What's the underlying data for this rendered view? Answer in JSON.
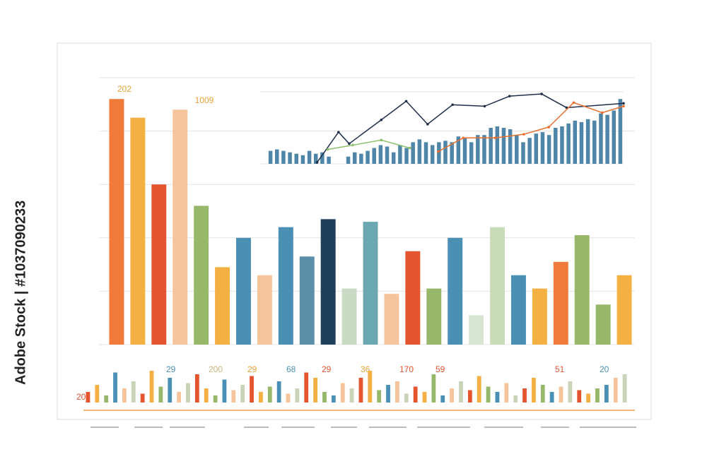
{
  "watermark": "Adobe Stock | #1037090233",
  "chart_data": [
    {
      "type": "bar",
      "annotations": [
        "202",
        "1009"
      ],
      "categories": [
        null,
        null,
        null,
        null,
        null,
        null,
        null,
        null,
        null,
        null,
        null,
        null,
        null,
        null,
        null,
        null,
        null,
        null,
        null,
        null,
        null,
        null,
        null,
        null,
        null
      ],
      "values": [
        92,
        85,
        60,
        88,
        52,
        29,
        40,
        26,
        44,
        33,
        47,
        21,
        46,
        19,
        35,
        21,
        40,
        11,
        44,
        26,
        21,
        31,
        41,
        15,
        26
      ],
      "colors": [
        "#f07a3a",
        "#f5b043",
        "#e4552f",
        "#f6c49b",
        "#97b86a",
        "#f5b043",
        "#4a90b5",
        "#f6c49b",
        "#4a90b5",
        "#5b8fa8",
        "#1f3f5a",
        "#c9dcc3",
        "#6aa7b0",
        "#f6c49b",
        "#e4552f",
        "#97b86a",
        "#4a90b5",
        "#d9e5d3",
        "#c9dcb8",
        "#4a90b5",
        "#f5b043",
        "#f07a3a",
        "#97b86a",
        "#97b86a",
        "#f5b043"
      ],
      "ylim": [
        0,
        100
      ],
      "yticks": [
        0,
        20,
        40,
        60,
        80,
        100
      ],
      "grid": true
    },
    {
      "type": "combo",
      "categories": [
        null,
        null,
        null,
        null,
        null,
        null,
        null,
        null,
        null,
        null,
        null,
        null,
        null,
        null,
        null,
        null,
        null,
        null,
        null,
        null,
        null,
        null,
        null,
        null,
        null,
        null,
        null,
        null,
        null,
        null,
        null,
        null,
        null,
        null,
        null,
        null,
        null,
        null,
        null,
        null,
        null,
        null,
        null,
        null,
        null,
        null,
        null,
        null,
        null,
        null,
        null,
        null,
        null,
        null,
        null
      ],
      "values": [
        18,
        20,
        18,
        16,
        14,
        12,
        18,
        14,
        16,
        10,
        0,
        0,
        10,
        16,
        14,
        18,
        22,
        26,
        24,
        16,
        26,
        22,
        30,
        34,
        30,
        26,
        30,
        32,
        30,
        38,
        36,
        30,
        40,
        40,
        50,
        52,
        50,
        48,
        40,
        30,
        36,
        42,
        44,
        40,
        50,
        52,
        56,
        60,
        58,
        62,
        60,
        70,
        68,
        74,
        90
      ],
      "color": "#4f86a8",
      "xlim": [
        0,
        100
      ],
      "ylim": [
        0,
        100
      ],
      "yticks": [
        0,
        100
      ],
      "grid": true,
      "series": [
        {
          "color": "#1f2f4a",
          "x": [
            14,
            20,
            23,
            32,
            39,
            45,
            52,
            61,
            68,
            77,
            84,
            100
          ],
          "values": [
            2,
            44,
            28,
            61,
            87,
            55,
            82,
            80,
            94,
            97,
            78,
            84
          ]
        },
        {
          "color": "#e8702f",
          "x": [
            48,
            55,
            64,
            72,
            79,
            86,
            94,
            100
          ],
          "values": [
            17,
            36,
            36,
            41,
            51,
            85,
            71,
            80
          ]
        },
        {
          "color": "#8cc06b",
          "x": [
            17,
            24,
            32,
            40
          ],
          "values": [
            20,
            26,
            33,
            22
          ]
        }
      ]
    },
    {
      "type": "bar",
      "annotations": [
        "20",
        "29",
        "200",
        "29",
        "68",
        "29",
        "36",
        "170",
        "59",
        "51",
        "20"
      ],
      "categories": [
        null,
        null,
        null,
        null,
        null,
        null,
        null,
        null,
        null,
        null,
        null,
        null,
        null,
        null,
        null,
        null,
        null,
        null,
        null,
        null,
        null,
        null,
        null,
        null,
        null,
        null,
        null,
        null,
        null,
        null,
        null,
        null,
        null,
        null,
        null,
        null,
        null,
        null,
        null,
        null,
        null,
        null,
        null,
        null,
        null,
        null,
        null,
        null,
        null,
        null,
        null,
        null,
        null,
        null,
        null,
        null,
        null,
        null,
        null,
        null
      ],
      "values": [
        30,
        50,
        20,
        85,
        40,
        60,
        25,
        90,
        45,
        70,
        30,
        55,
        80,
        40,
        20,
        65,
        35,
        50,
        75,
        30,
        45,
        60,
        25,
        40,
        85,
        70,
        30,
        20,
        55,
        40,
        70,
        90,
        35,
        50,
        60,
        25,
        45,
        30,
        80,
        20,
        40,
        60,
        35,
        75,
        45,
        30,
        55,
        20,
        40,
        70,
        50,
        30,
        45,
        60,
        35,
        25,
        40,
        50,
        70,
        80
      ],
      "colors": [
        "#e4552f",
        "#f5b043",
        "#97b86a",
        "#4a90b5",
        "#f6c49b",
        "#c9d3b8"
      ],
      "ylim": [
        0,
        100
      ],
      "yticks": [
        0
      ],
      "grid": false
    }
  ]
}
